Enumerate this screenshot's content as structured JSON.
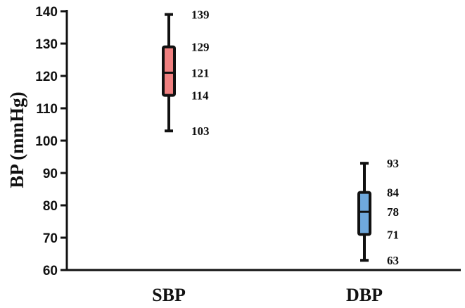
{
  "chart_data": {
    "type": "box",
    "ylabel": "BP (mmHg)",
    "xlabel": "",
    "ylim": [
      60,
      140
    ],
    "yticks": [
      60,
      70,
      80,
      90,
      100,
      110,
      120,
      130,
      140
    ],
    "grid": false,
    "categories": [
      "SBP",
      "DBP"
    ],
    "boxes": [
      {
        "category": "SBP",
        "min": 103,
        "q1": 114,
        "median": 121,
        "q3": 129,
        "max": 139,
        "color": "#f08080"
      },
      {
        "category": "DBP",
        "min": 63,
        "q1": 71,
        "median": 78,
        "q3": 84,
        "max": 93,
        "color": "#6fa8dc"
      }
    ]
  }
}
